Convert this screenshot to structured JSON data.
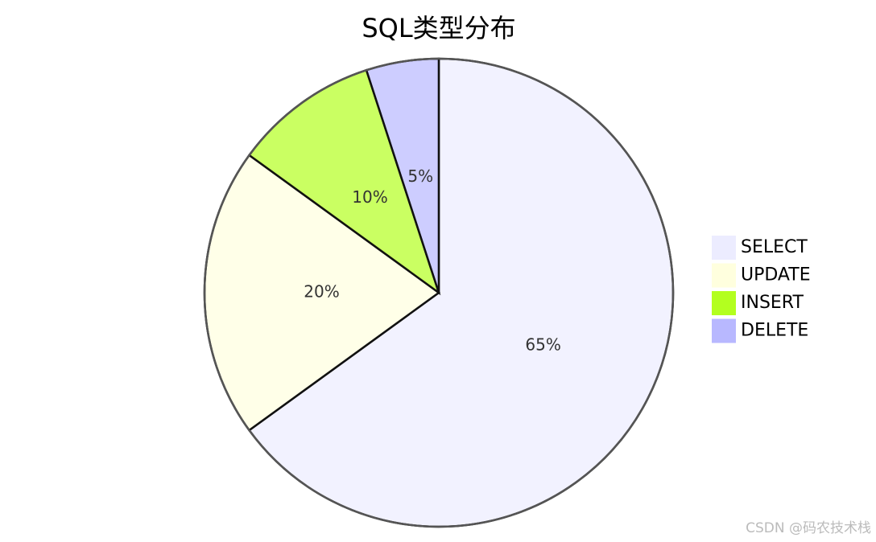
{
  "chart_data": {
    "type": "pie",
    "title": "SQL类型分布",
    "categories": [
      "SELECT",
      "UPDATE",
      "INSERT",
      "DELETE"
    ],
    "values": [
      65,
      20,
      10,
      5
    ],
    "value_labels": [
      "65%",
      "20%",
      "10%",
      "5%"
    ],
    "colors": [
      "#ececff",
      "#ffffde",
      "#b3ff1f",
      "#b8b8ff"
    ],
    "legend": "right"
  },
  "watermark": "CSDN @码农技术栈"
}
